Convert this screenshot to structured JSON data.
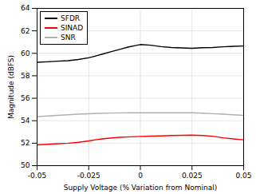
{
  "chart_data": {
    "type": "line",
    "xlabel": "Supply Voltage (% Variation from Nominal)",
    "ylabel": "Magnitude (dBFS)",
    "xlim": [
      -0.05,
      0.05
    ],
    "ylim": [
      50,
      64
    ],
    "xticks": [
      -0.05,
      -0.025,
      0,
      0.025,
      0.05
    ],
    "yticks": [
      50,
      52,
      54,
      56,
      58,
      60,
      62,
      64
    ],
    "grid": true,
    "legend": "upper left",
    "series": [
      {
        "name": "SFDR",
        "color": "#000000",
        "x": [
          -0.05,
          -0.045,
          -0.04,
          -0.035,
          -0.03,
          -0.025,
          -0.022,
          -0.018,
          -0.014,
          -0.01,
          -0.006,
          -0.002,
          0,
          0.005,
          0.01,
          0.015,
          0.02,
          0.025,
          0.03,
          0.035,
          0.04,
          0.045,
          0.05
        ],
        "values": [
          59.2,
          59.25,
          59.3,
          59.35,
          59.45,
          59.6,
          59.75,
          59.95,
          60.15,
          60.35,
          60.55,
          60.7,
          60.78,
          60.72,
          60.6,
          60.52,
          60.48,
          60.45,
          60.5,
          60.52,
          60.58,
          60.62,
          60.65
        ]
      },
      {
        "name": "SINAD",
        "color": "#ff0000",
        "x": [
          -0.05,
          -0.045,
          -0.04,
          -0.035,
          -0.03,
          -0.025,
          -0.02,
          -0.015,
          -0.01,
          -0.005,
          0,
          0.005,
          0.01,
          0.015,
          0.02,
          0.025,
          0.03,
          0.035,
          0.04,
          0.045,
          0.05
        ],
        "values": [
          51.85,
          51.9,
          51.95,
          52.0,
          52.08,
          52.2,
          52.35,
          52.45,
          52.52,
          52.57,
          52.6,
          52.63,
          52.65,
          52.68,
          52.7,
          52.72,
          52.68,
          52.62,
          52.48,
          52.38,
          52.3
        ]
      },
      {
        "name": "SNR",
        "color": "#b0b0b0",
        "x": [
          -0.05,
          -0.045,
          -0.04,
          -0.035,
          -0.03,
          -0.025,
          -0.02,
          -0.015,
          -0.01,
          -0.005,
          0,
          0.005,
          0.01,
          0.015,
          0.02,
          0.025,
          0.03,
          0.035,
          0.04,
          0.045,
          0.05
        ],
        "values": [
          54.35,
          54.42,
          54.48,
          54.53,
          54.58,
          54.62,
          54.65,
          54.68,
          54.7,
          54.71,
          54.71,
          54.71,
          54.71,
          54.71,
          54.71,
          54.71,
          54.67,
          54.63,
          54.58,
          54.53,
          54.48
        ]
      }
    ]
  }
}
